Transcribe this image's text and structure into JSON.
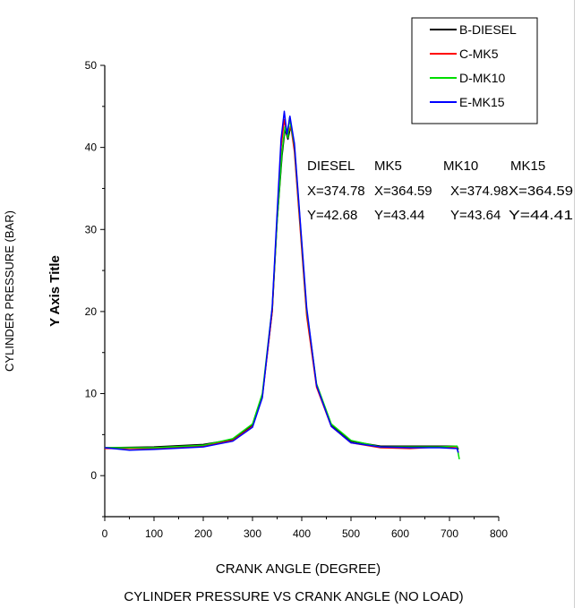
{
  "chart_data": {
    "type": "line",
    "xlabel": "CRANK ANGLE (DEGREE)",
    "ylabel": "CYLINDER PRESSURE (BAR)",
    "ylabel_secondary": "Y Axis Title",
    "caption": "CYLINDER PRESSURE VS CRANK ANGLE (NO LOAD)",
    "xlim": [
      0,
      800
    ],
    "ylim": [
      -5,
      50
    ],
    "xticks": [
      0,
      100,
      200,
      300,
      400,
      500,
      600,
      700,
      800
    ],
    "yticks": [
      0,
      10,
      20,
      30,
      40,
      50
    ],
    "grid": false,
    "legend_position": "top-right",
    "series": [
      {
        "name": "B-DIESEL",
        "color": "#000000",
        "x": [
          0,
          100,
          200,
          260,
          300,
          320,
          340,
          350,
          360,
          366,
          372,
          378,
          385,
          395,
          410,
          430,
          460,
          500,
          560,
          620,
          680,
          715,
          718
        ],
        "y": [
          3.4,
          3.5,
          3.8,
          4.4,
          6.2,
          9.8,
          20,
          31,
          39,
          42.2,
          41,
          42.7,
          40,
          32,
          20,
          11,
          6.2,
          4.2,
          3.6,
          3.6,
          3.6,
          3.6,
          3.2
        ]
      },
      {
        "name": "C-MK5",
        "color": "#ff0000",
        "x": [
          0,
          100,
          200,
          260,
          300,
          320,
          340,
          350,
          358,
          364.6,
          370,
          378,
          385,
          395,
          410,
          430,
          460,
          500,
          560,
          620,
          680,
          715,
          718
        ],
        "y": [
          3.3,
          3.3,
          3.6,
          4.3,
          6,
          9.6,
          20,
          31.5,
          40,
          43.4,
          41.5,
          42.5,
          39.5,
          31.5,
          19.5,
          10.8,
          6,
          4,
          3.4,
          3.3,
          3.5,
          3.4,
          2.8
        ]
      },
      {
        "name": "D-MK10",
        "color": "#00dd00",
        "x": [
          0,
          100,
          200,
          260,
          300,
          320,
          340,
          350,
          360,
          366,
          372,
          375,
          385,
          395,
          410,
          430,
          460,
          500,
          560,
          620,
          680,
          715,
          720
        ],
        "y": [
          3.4,
          3.4,
          3.7,
          4.5,
          6.3,
          10,
          20.5,
          31,
          39.5,
          42.5,
          41.2,
          43.6,
          40.2,
          32.2,
          20.2,
          11.2,
          6.3,
          4.3,
          3.5,
          3.5,
          3.5,
          3.6,
          2
        ]
      },
      {
        "name": "E-MK15",
        "color": "#0000ff",
        "x": [
          0,
          50,
          100,
          200,
          260,
          300,
          320,
          340,
          350,
          358,
          364.6,
          370,
          376,
          385,
          395,
          410,
          430,
          460,
          500,
          560,
          620,
          680,
          715,
          718
        ],
        "y": [
          3.4,
          3.1,
          3.2,
          3.5,
          4.2,
          5.9,
          9.5,
          20.5,
          32,
          41,
          44.4,
          41.6,
          43.8,
          40.5,
          32.5,
          20.5,
          11,
          6,
          4,
          3.5,
          3.4,
          3.4,
          3.3,
          2.8
        ]
      }
    ],
    "annotations": {
      "columns": [
        {
          "name": "DIESEL",
          "x": "X=374.78",
          "y": "Y=42.68"
        },
        {
          "name": "MK5",
          "x": "X=364.59",
          "y": "Y=43.44"
        },
        {
          "name": "MK10",
          "x": "X=374.98",
          "y": "Y=43.64"
        },
        {
          "name": "MK15",
          "x": "X=364.59",
          "y": "Y=44.41"
        }
      ]
    }
  }
}
